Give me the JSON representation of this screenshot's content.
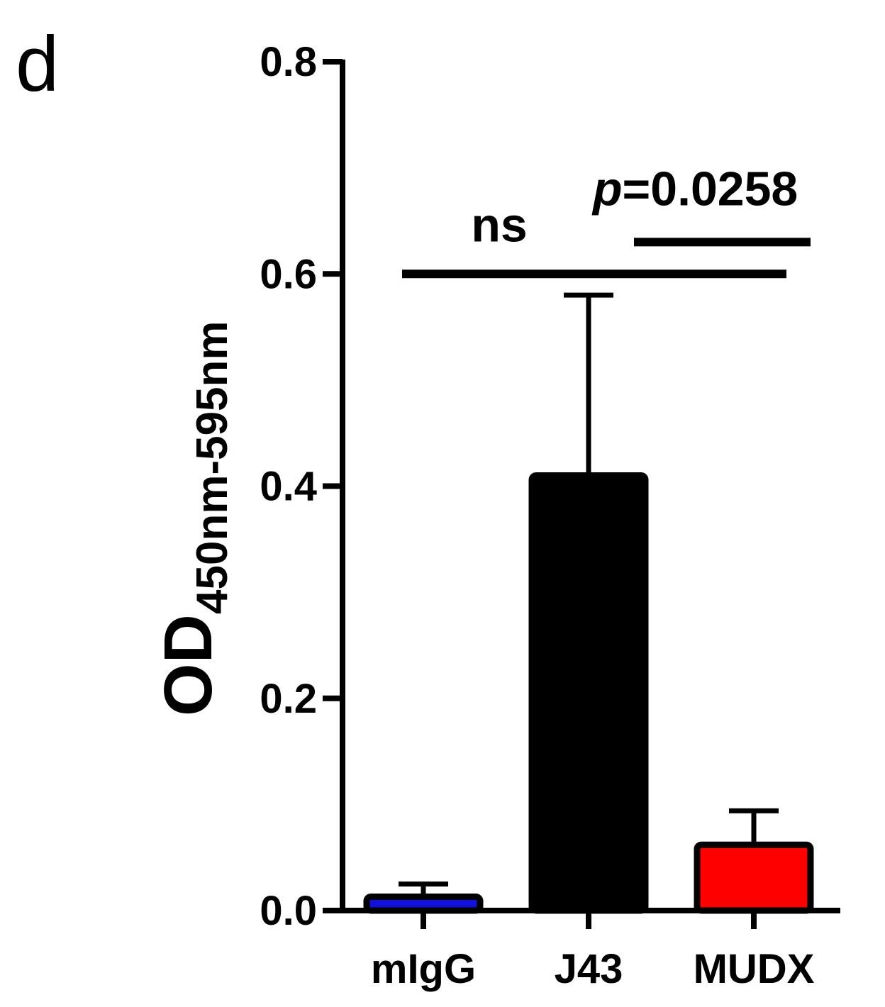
{
  "panel_label": "d",
  "chart_data": {
    "type": "bar",
    "categories": [
      "mIgG",
      "J43",
      "MUDX"
    ],
    "values": [
      0.013,
      0.41,
      0.062
    ],
    "errors": [
      0.012,
      0.17,
      0.032
    ],
    "colors": [
      "#1010e0",
      "#000000",
      "#ff0000"
    ],
    "title": "",
    "xlabel": "",
    "ylabel": "OD",
    "ylabel_subscript": "450nm-595nm",
    "ylim": [
      0,
      0.8
    ],
    "yticks": [
      0.0,
      0.2,
      0.4,
      0.6,
      0.8
    ],
    "ytick_labels": [
      "0.0",
      "0.2",
      "0.4",
      "0.6",
      "0.8"
    ],
    "grid": false,
    "annotations": [
      {
        "type": "significance",
        "from": "mIgG",
        "to": "MUDX",
        "label": "ns",
        "level": 0.6
      },
      {
        "type": "significance",
        "from": "J43",
        "to": "MUDX",
        "label_prefix": "p",
        "label_value": "=0.0258",
        "level": 0.63
      }
    ]
  }
}
